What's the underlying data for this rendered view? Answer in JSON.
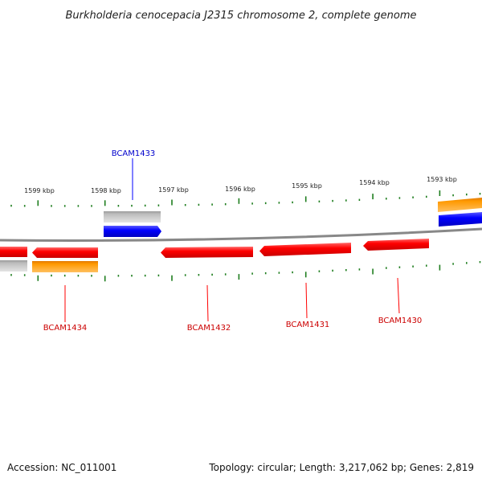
{
  "title": "Burkholderia cenocepacia J2315 chromosome 2, complete genome",
  "footer": {
    "accession": "Accession: NC_011001",
    "summary": "Topology: circular; Length: 3,217,062 bp; Genes: 2,819"
  },
  "scale_labels": [
    "1599 kbp",
    "1598 kbp",
    "1597 kbp",
    "1596 kbp",
    "1595 kbp",
    "1594 kbp",
    "1593 kbp"
  ],
  "genes": [
    {
      "name": "BCAM1433",
      "color": "#0000ff",
      "strand": "forward"
    },
    {
      "name": "BCAM1434",
      "color": "#ff0000",
      "strand": "reverse"
    },
    {
      "name": "BCAM1432",
      "color": "#ff0000",
      "strand": "reverse"
    },
    {
      "name": "BCAM1431",
      "color": "#ff0000",
      "strand": "reverse"
    },
    {
      "name": "BCAM1430",
      "color": "#ff0000",
      "strand": "reverse"
    }
  ],
  "colors": {
    "forward_gene": "#0000ff",
    "reverse_gene": "#ff0000",
    "forward_label": "#0000cc",
    "reverse_label": "#cc0000",
    "rna_track": "#bbbbbb",
    "orange_track": "#ff9900",
    "backbone": "#888888",
    "ticks": "#1e7d1e"
  }
}
